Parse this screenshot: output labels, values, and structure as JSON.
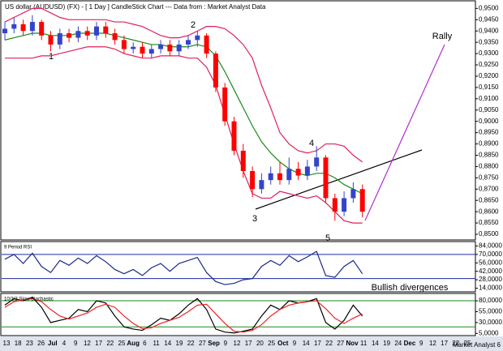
{
  "header": "US dollar (AUDUSD) (FX) - [ 1 Day ] CandleStick Chart --- Data from : Market Analyst Data",
  "footer": "Market Analyst 6",
  "annotations": {
    "wave_1": "1",
    "wave_2": "2",
    "wave_3": "3",
    "wave_4": "4",
    "wave_5": "5",
    "rally": "Rally",
    "divergence": "Bullish divergences"
  },
  "x_axis_labels": [
    "13",
    "18",
    "23",
    "26",
    "Jul",
    "4",
    "9",
    "12",
    "17",
    "22",
    "25",
    "Aug",
    "6",
    "11",
    "14",
    "19",
    "22",
    "27",
    "Sep",
    "9",
    "12",
    "17",
    "20",
    "25",
    "Oct",
    "9",
    "14",
    "17",
    "22",
    "27",
    "Nov",
    "11",
    "14",
    "19",
    "24",
    "Dec",
    "9",
    "12",
    "17",
    "22",
    "25"
  ],
  "chart_data": [
    {
      "type": "candlestick",
      "open": [
        0.939,
        0.941,
        0.943,
        0.94,
        0.944,
        0.938,
        0.934,
        0.939,
        0.937,
        0.94,
        0.938,
        0.942,
        0.939,
        0.936,
        0.932,
        0.933,
        0.93,
        0.932,
        0.934,
        0.931,
        0.934,
        0.936,
        0.938,
        0.93,
        0.915,
        0.9,
        0.887,
        0.878,
        0.87,
        0.874,
        0.877,
        0.874,
        0.879,
        0.876,
        0.88,
        0.884,
        0.866,
        0.86,
        0.866,
        0.87
      ],
      "high": [
        0.944,
        0.946,
        0.945,
        0.947,
        0.945,
        0.94,
        0.941,
        0.941,
        0.942,
        0.942,
        0.944,
        0.944,
        0.941,
        0.938,
        0.935,
        0.935,
        0.934,
        0.936,
        0.936,
        0.936,
        0.938,
        0.94,
        0.939,
        0.931,
        0.917,
        0.902,
        0.89,
        0.88,
        0.877,
        0.88,
        0.882,
        0.884,
        0.882,
        0.883,
        0.889,
        0.885,
        0.868,
        0.869,
        0.873,
        0.872
      ],
      "low": [
        0.936,
        0.939,
        0.938,
        0.938,
        0.936,
        0.931,
        0.932,
        0.935,
        0.935,
        0.936,
        0.936,
        0.937,
        0.934,
        0.93,
        0.93,
        0.928,
        0.928,
        0.93,
        0.929,
        0.929,
        0.932,
        0.933,
        0.928,
        0.913,
        0.898,
        0.885,
        0.875,
        0.8665,
        0.868,
        0.872,
        0.872,
        0.872,
        0.874,
        0.874,
        0.878,
        0.864,
        0.856,
        0.858,
        0.864,
        0.8575
      ],
      "close": [
        0.941,
        0.943,
        0.94,
        0.944,
        0.938,
        0.934,
        0.939,
        0.937,
        0.94,
        0.938,
        0.942,
        0.939,
        0.936,
        0.932,
        0.933,
        0.93,
        0.932,
        0.934,
        0.931,
        0.934,
        0.936,
        0.938,
        0.93,
        0.915,
        0.9,
        0.887,
        0.878,
        0.87,
        0.874,
        0.877,
        0.874,
        0.879,
        0.876,
        0.88,
        0.884,
        0.866,
        0.86,
        0.866,
        0.87,
        0.86
      ],
      "up_color": "#3344cc",
      "down_color": "#ff0000",
      "series": [
        {
          "color": "#e0205a",
          "values": [
            0.944,
            0.946,
            0.948,
            0.95,
            0.95,
            0.948,
            0.946,
            0.945,
            0.945,
            0.945,
            0.945,
            0.945,
            0.944,
            0.944,
            0.943,
            0.942,
            0.94,
            0.938,
            0.937,
            0.937,
            0.938,
            0.94,
            0.942,
            0.942,
            0.941,
            0.938,
            0.934,
            0.928,
            0.916,
            0.906,
            0.895,
            0.89,
            0.887,
            0.886,
            0.887,
            0.89,
            0.89,
            0.889,
            0.885,
            0.882
          ]
        },
        {
          "color": "#1a8a1a",
          "values": [
            0.936,
            0.937,
            0.938,
            0.939,
            0.939,
            0.938,
            0.938,
            0.938,
            0.939,
            0.939,
            0.939,
            0.939,
            0.938,
            0.937,
            0.936,
            0.935,
            0.934,
            0.934,
            0.933,
            0.933,
            0.933,
            0.934,
            0.933,
            0.929,
            0.922,
            0.914,
            0.906,
            0.898,
            0.891,
            0.886,
            0.882,
            0.879,
            0.877,
            0.876,
            0.877,
            0.877,
            0.875,
            0.872,
            0.87,
            0.868
          ]
        },
        {
          "color": "#e0205a",
          "values": [
            0.928,
            0.928,
            0.928,
            0.928,
            0.929,
            0.929,
            0.93,
            0.931,
            0.932,
            0.933,
            0.933,
            0.933,
            0.932,
            0.93,
            0.929,
            0.928,
            0.928,
            0.929,
            0.929,
            0.929,
            0.928,
            0.928,
            0.924,
            0.916,
            0.903,
            0.89,
            0.878,
            0.868,
            0.866,
            0.866,
            0.869,
            0.868,
            0.867,
            0.866,
            0.867,
            0.864,
            0.86,
            0.856,
            0.855,
            0.855
          ]
        }
      ],
      "ylim": [
        0.8475,
        0.953
      ],
      "yticks": [
        {
          "value": 0.95,
          "label": "0,9500"
        },
        {
          "value": 0.945,
          "label": "0,9450"
        },
        {
          "value": 0.94,
          "label": "0,9400"
        },
        {
          "value": 0.935,
          "label": "0,9350"
        },
        {
          "value": 0.93,
          "label": "0,9300"
        },
        {
          "value": 0.925,
          "label": "0,9250"
        },
        {
          "value": 0.92,
          "label": "0,9200"
        },
        {
          "value": 0.915,
          "label": "0,9150"
        },
        {
          "value": 0.91,
          "label": "0,9100"
        },
        {
          "value": 0.905,
          "label": "0,9050"
        },
        {
          "value": 0.9,
          "label": "0,9000"
        },
        {
          "value": 0.895,
          "label": "0,8950"
        },
        {
          "value": 0.89,
          "label": "0,8900"
        },
        {
          "value": 0.885,
          "label": "0,8850"
        },
        {
          "value": 0.88,
          "label": "0,8800"
        },
        {
          "value": 0.875,
          "label": "0,8750"
        },
        {
          "value": 0.87,
          "label": "0,8700"
        },
        {
          "value": 0.865,
          "label": "0,8650"
        },
        {
          "value": 0.86,
          "label": "0,8600"
        },
        {
          "value": 0.855,
          "label": "0,8550"
        },
        {
          "value": 0.85,
          "label": "0,8500"
        }
      ]
    },
    {
      "type": "line",
      "title": "9 Period RSI",
      "series": [
        {
          "color": "#1a2a8a",
          "values": [
            62,
            70,
            55,
            72,
            50,
            40,
            60,
            52,
            64,
            55,
            68,
            58,
            45,
            38,
            45,
            35,
            48,
            55,
            42,
            55,
            60,
            65,
            40,
            25,
            20,
            22,
            28,
            30,
            50,
            60,
            52,
            68,
            58,
            66,
            75,
            35,
            32,
            50,
            60,
            38
          ]
        }
      ],
      "levels": [
        70,
        30
      ],
      "level_color": "#1a2aaa",
      "ylim": [
        8,
        90
      ],
      "yticks": [
        {
          "value": 84,
          "label": "84,0000"
        },
        {
          "value": 70,
          "label": "70,0000"
        },
        {
          "value": 56,
          "label": "56,0000"
        },
        {
          "value": 42,
          "label": "42,0000"
        },
        {
          "value": 28,
          "label": "28,0000"
        },
        {
          "value": 14,
          "label": "14,0000"
        }
      ]
    },
    {
      "type": "line",
      "title": "10/3/3 Slow Stochastic",
      "series": [
        {
          "color": "#000000",
          "values": [
            70,
            85,
            80,
            88,
            65,
            30,
            35,
            40,
            60,
            55,
            80,
            75,
            45,
            20,
            15,
            12,
            25,
            40,
            35,
            50,
            70,
            85,
            60,
            15,
            8,
            6,
            10,
            15,
            45,
            70,
            60,
            80,
            75,
            78,
            85,
            30,
            15,
            35,
            70,
            45
          ]
        },
        {
          "color": "#ee2222",
          "values": [
            65,
            78,
            82,
            85,
            78,
            60,
            45,
            38,
            45,
            52,
            65,
            72,
            65,
            45,
            28,
            16,
            18,
            28,
            35,
            42,
            55,
            70,
            72,
            50,
            28,
            10,
            8,
            12,
            25,
            45,
            60,
            70,
            75,
            78,
            80,
            62,
            40,
            28,
            40,
            50
          ]
        }
      ],
      "levels": [
        80,
        20
      ],
      "level_color": "#1a8a1a",
      "ylim": [
        0,
        95
      ],
      "yticks": [
        {
          "value": 80,
          "label": "80,0000"
        },
        {
          "value": 55,
          "label": "55,0000"
        },
        {
          "value": 30,
          "label": "30,0000"
        },
        {
          "value": 5,
          "label": "5,0000"
        }
      ]
    }
  ]
}
